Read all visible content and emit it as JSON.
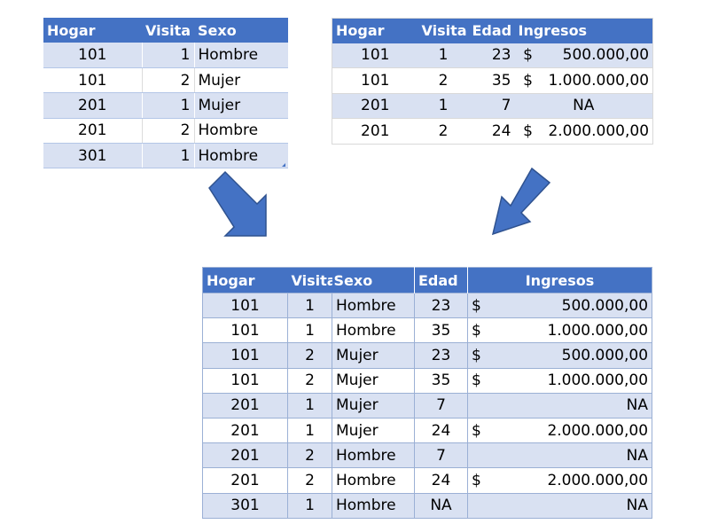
{
  "colors": {
    "header": "#4472c4",
    "band": "#d9e1f2",
    "arrow": "#4472c4",
    "arrow_stroke": "#2f528f"
  },
  "table1": {
    "headers": [
      "Hogar",
      "Visita",
      "Sexo"
    ],
    "rows": [
      [
        "101",
        "1",
        "Hombre"
      ],
      [
        "101",
        "2",
        "Mujer"
      ],
      [
        "201",
        "1",
        "Mujer"
      ],
      [
        "201",
        "2",
        "Hombre"
      ],
      [
        "301",
        "1",
        "Hombre"
      ]
    ]
  },
  "table2": {
    "headers": [
      "Hogar",
      "Visita",
      "Edad",
      "Ingresos"
    ],
    "rows": [
      [
        "101",
        "1",
        "23",
        "$",
        "500.000,00"
      ],
      [
        "101",
        "2",
        "35",
        "$",
        "1.000.000,00"
      ],
      [
        "201",
        "1",
        "7",
        "",
        "NA"
      ],
      [
        "201",
        "2",
        "24",
        "$",
        "2.000.000,00"
      ]
    ]
  },
  "merged": {
    "headers": [
      "Hogar",
      "Visita",
      "Sexo",
      "Edad",
      "Ingresos"
    ],
    "rows": [
      [
        "101",
        "1",
        "Hombre",
        "23",
        "$",
        "500.000,00"
      ],
      [
        "101",
        "1",
        "Hombre",
        "35",
        "$",
        "1.000.000,00"
      ],
      [
        "101",
        "2",
        "Mujer",
        "23",
        "$",
        "500.000,00"
      ],
      [
        "101",
        "2",
        "Mujer",
        "35",
        "$",
        "1.000.000,00"
      ],
      [
        "201",
        "1",
        "Mujer",
        "7",
        "",
        "NA"
      ],
      [
        "201",
        "1",
        "Mujer",
        "24",
        "$",
        "2.000.000,00"
      ],
      [
        "201",
        "2",
        "Hombre",
        "7",
        "",
        "NA"
      ],
      [
        "201",
        "2",
        "Hombre",
        "24",
        "$",
        "2.000.000,00"
      ],
      [
        "301",
        "1",
        "Hombre",
        "NA",
        "",
        "NA"
      ]
    ]
  }
}
